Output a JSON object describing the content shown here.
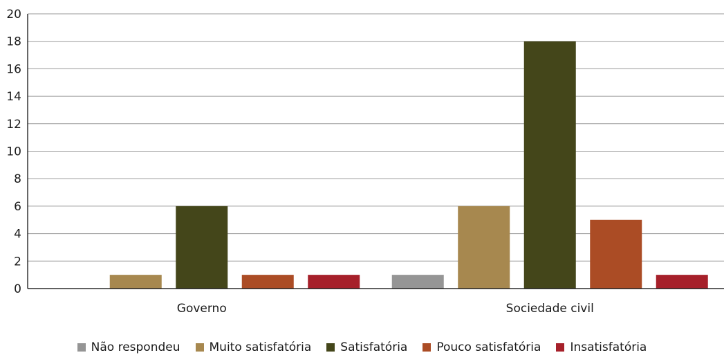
{
  "chart_data": {
    "type": "bar",
    "title": "",
    "xlabel": "",
    "ylabel": "",
    "ylim": [
      0,
      20
    ],
    "yticks": [
      "0",
      "2",
      "4",
      "6",
      "8",
      "10",
      "12",
      "14",
      "16",
      "18",
      "20"
    ],
    "grid": true,
    "legend_position": "bottom",
    "categories": [
      "Governo",
      "Sociedade civil"
    ],
    "series": [
      {
        "name": "Não respondeu",
        "color": "#959595",
        "values": [
          0,
          1
        ]
      },
      {
        "name": "Muito satisfatória",
        "color": "#a7884f",
        "values": [
          1,
          6
        ]
      },
      {
        "name": "Satisfatória",
        "color": "#44461a",
        "values": [
          6,
          18
        ]
      },
      {
        "name": "Pouco satisfatória",
        "color": "#ab4c25",
        "values": [
          1,
          5
        ]
      },
      {
        "name": "Insatisfatória",
        "color": "#a6202a",
        "values": [
          1,
          1
        ]
      }
    ]
  }
}
